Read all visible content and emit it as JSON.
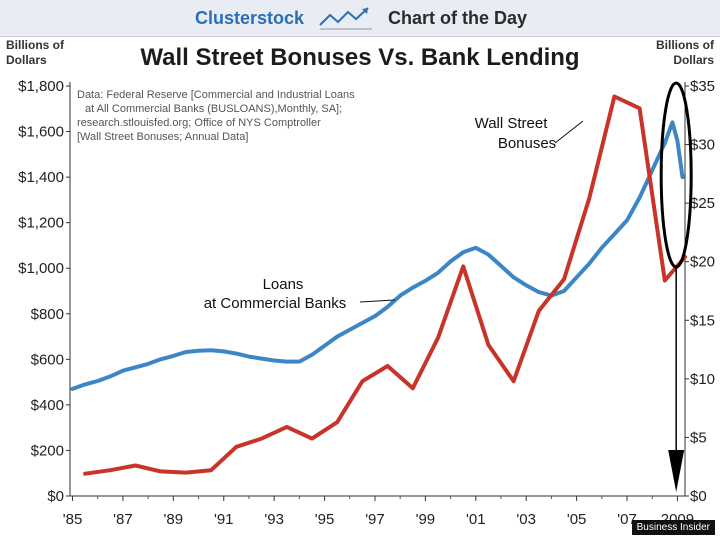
{
  "header": {
    "brand": "Clusterstock",
    "tagline": "Chart of the Day"
  },
  "units": {
    "left": [
      "Billions of",
      "Dollars"
    ],
    "right": [
      "Billions of",
      "Dollars"
    ]
  },
  "source_lines": [
    "Data: Federal Reserve [Commercial and Industrial Loans",
    " at All Commercial Banks (BUSLOANS),Monthly, SA];",
    "research.stlouisfed.org; Office of NYS Comptroller",
    "[Wall Street Bonuses; Annual Data]"
  ],
  "credit": "Business Insider",
  "colors": {
    "loans": "#3d86c6",
    "bonuses": "#c8342a",
    "annotation": "#000000"
  },
  "chart_data": {
    "type": "line",
    "title": "Wall Street Bonuses Vs. Bank Lending",
    "x_ticks": [
      "'85",
      "'87",
      "'89",
      "'91",
      "'93",
      "'95",
      "'97",
      "'99",
      "'01",
      "'03",
      "'05",
      "'07",
      "2009"
    ],
    "x_tick_years": [
      1985,
      1987,
      1989,
      1991,
      1993,
      1995,
      1997,
      1999,
      2001,
      2003,
      2005,
      2007,
      2009
    ],
    "xlim": [
      1984.9,
      2009.3
    ],
    "y_left": {
      "lim": [
        0,
        1800
      ],
      "ticks": [
        0,
        200,
        400,
        600,
        800,
        1000,
        1200,
        1400,
        1600,
        1800
      ],
      "tick_labels": [
        "$0",
        "$200",
        "$400",
        "$600",
        "$800",
        "$1,000",
        "$1,200",
        "$1,400",
        "$1,600",
        "$1,800"
      ]
    },
    "y_right": {
      "lim": [
        0,
        35
      ],
      "ticks": [
        0,
        5,
        10,
        15,
        20,
        25,
        30,
        35
      ],
      "tick_labels": [
        "$0",
        "$5",
        "$10",
        "$15",
        "$20",
        "$25",
        "$30",
        "$35"
      ]
    },
    "series": [
      {
        "name": "Loans at Commercial Banks",
        "axis": "left",
        "label_lines": [
          "Loans",
          "at Commercial Banks"
        ],
        "points": [
          [
            1985.0,
            470
          ],
          [
            1985.5,
            490
          ],
          [
            1986.0,
            505
          ],
          [
            1986.5,
            525
          ],
          [
            1987.0,
            550
          ],
          [
            1987.5,
            565
          ],
          [
            1988.0,
            580
          ],
          [
            1988.5,
            600
          ],
          [
            1989.0,
            615
          ],
          [
            1989.5,
            632
          ],
          [
            1990.0,
            638
          ],
          [
            1990.5,
            640
          ],
          [
            1991.0,
            635
          ],
          [
            1991.5,
            625
          ],
          [
            1992.0,
            612
          ],
          [
            1992.5,
            603
          ],
          [
            1993.0,
            595
          ],
          [
            1993.5,
            590
          ],
          [
            1994.0,
            590
          ],
          [
            1994.5,
            620
          ],
          [
            1995.0,
            660
          ],
          [
            1995.5,
            700
          ],
          [
            1996.0,
            730
          ],
          [
            1996.5,
            760
          ],
          [
            1997.0,
            790
          ],
          [
            1997.5,
            830
          ],
          [
            1998.0,
            880
          ],
          [
            1998.5,
            915
          ],
          [
            1999.0,
            945
          ],
          [
            1999.5,
            980
          ],
          [
            2000.0,
            1030
          ],
          [
            2000.5,
            1070
          ],
          [
            2001.0,
            1090
          ],
          [
            2001.5,
            1060
          ],
          [
            2002.0,
            1010
          ],
          [
            2002.5,
            960
          ],
          [
            2003.0,
            925
          ],
          [
            2003.5,
            895
          ],
          [
            2004.0,
            880
          ],
          [
            2004.5,
            900
          ],
          [
            2005.0,
            960
          ],
          [
            2005.5,
            1020
          ],
          [
            2006.0,
            1090
          ],
          [
            2006.5,
            1150
          ],
          [
            2007.0,
            1210
          ],
          [
            2007.5,
            1310
          ],
          [
            2008.0,
            1430
          ],
          [
            2008.5,
            1550
          ],
          [
            2008.8,
            1640
          ],
          [
            2009.0,
            1560
          ],
          [
            2009.2,
            1400
          ]
        ]
      },
      {
        "name": "Wall Street Bonuses",
        "axis": "right",
        "label_lines": [
          "Wall Street",
          "Bonuses"
        ],
        "points": [
          [
            1985.5,
            1.9
          ],
          [
            1986.5,
            2.2
          ],
          [
            1987.5,
            2.6
          ],
          [
            1988.5,
            2.1
          ],
          [
            1989.5,
            2.0
          ],
          [
            1990.5,
            2.2
          ],
          [
            1991.5,
            4.2
          ],
          [
            1992.5,
            4.9
          ],
          [
            1993.5,
            5.9
          ],
          [
            1994.5,
            4.9
          ],
          [
            1995.5,
            6.3
          ],
          [
            1996.5,
            9.8
          ],
          [
            1997.5,
            11.1
          ],
          [
            1998.5,
            9.2
          ],
          [
            1999.5,
            13.5
          ],
          [
            2000.5,
            19.6
          ],
          [
            2001.5,
            12.9
          ],
          [
            2002.5,
            9.8
          ],
          [
            2003.5,
            15.8
          ],
          [
            2004.5,
            18.5
          ],
          [
            2005.5,
            25.4
          ],
          [
            2006.5,
            34.1
          ],
          [
            2007.5,
            33.1
          ],
          [
            2008.5,
            18.4
          ],
          [
            2009.3,
            20.4
          ]
        ]
      }
    ],
    "grid": false,
    "legend": "none"
  }
}
